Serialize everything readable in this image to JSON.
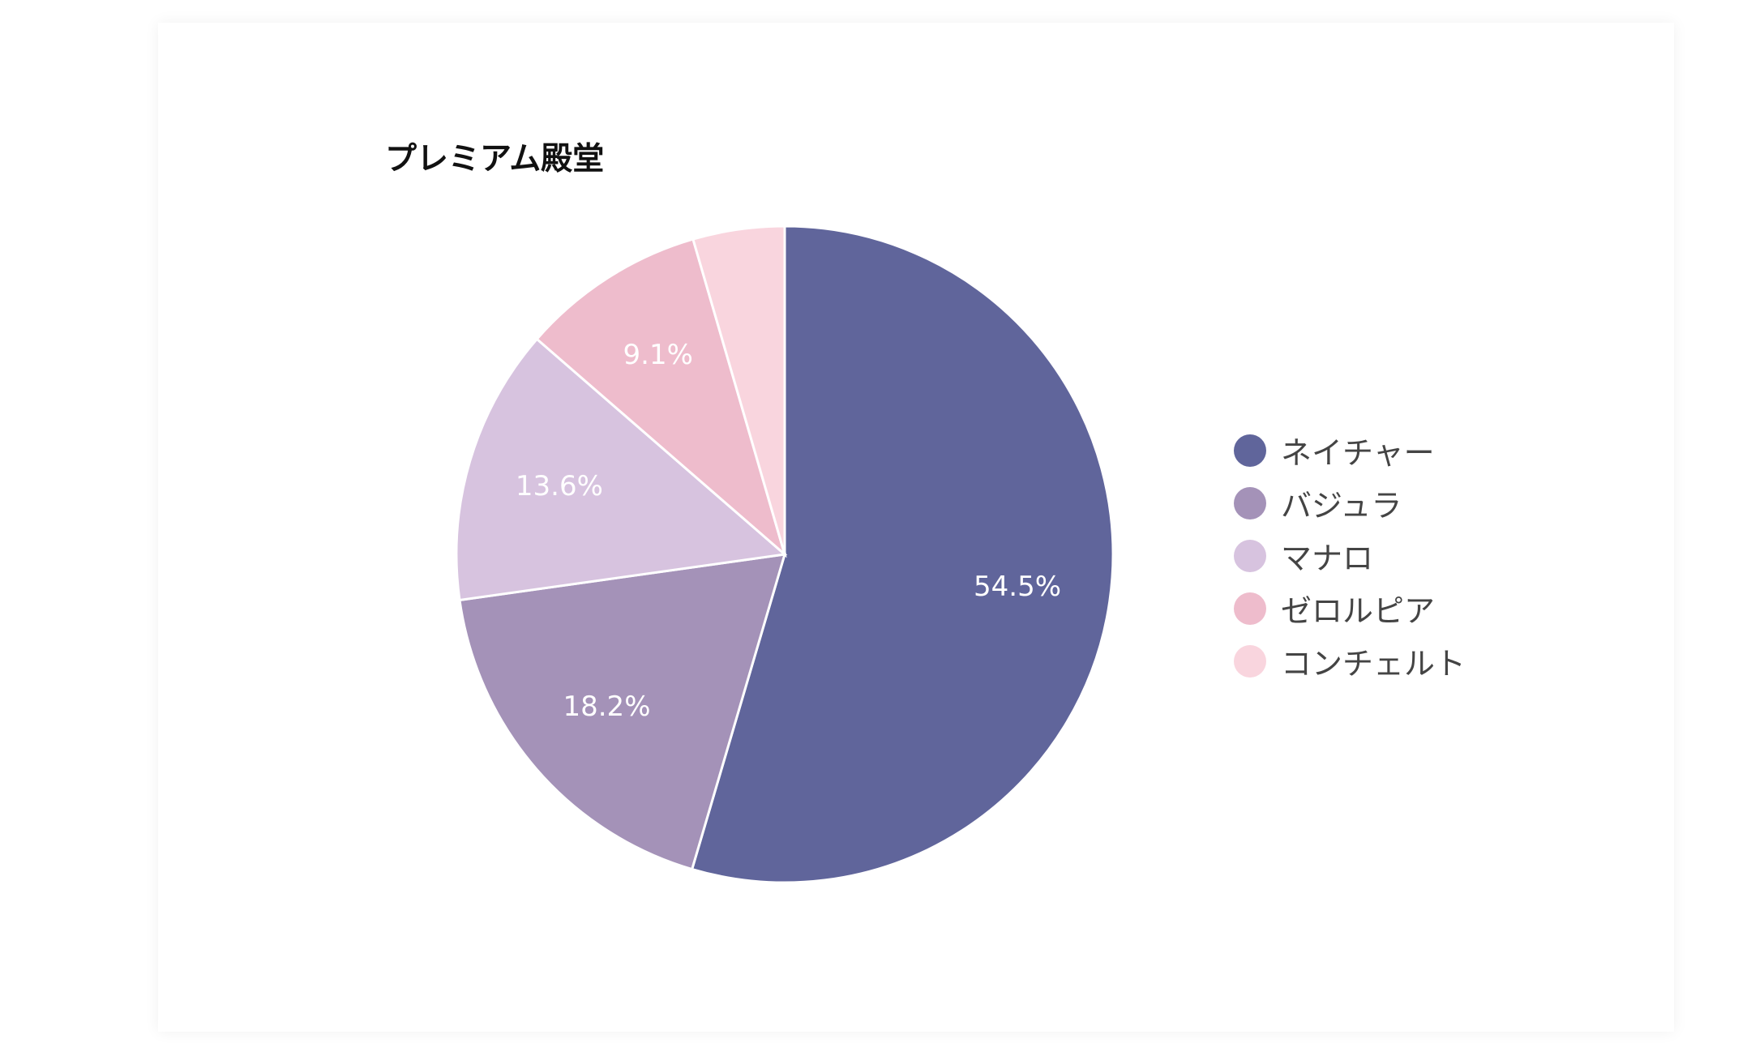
{
  "chart_data": {
    "type": "pie",
    "title": "プレミアム殿堂",
    "categories": [
      "ネイチャー",
      "バジュラ",
      "マナロ",
      "ゼロルピア",
      "コンチェルト"
    ],
    "values": [
      54.5,
      18.2,
      13.6,
      9.1,
      4.5
    ],
    "data_labels": [
      "54.5%",
      "18.2%",
      "13.6%",
      "9.1%",
      ""
    ],
    "colors": [
      "#60659b",
      "#a492b8",
      "#d7c3df",
      "#eebccc",
      "#f9d5de"
    ],
    "legend_position": "right"
  }
}
